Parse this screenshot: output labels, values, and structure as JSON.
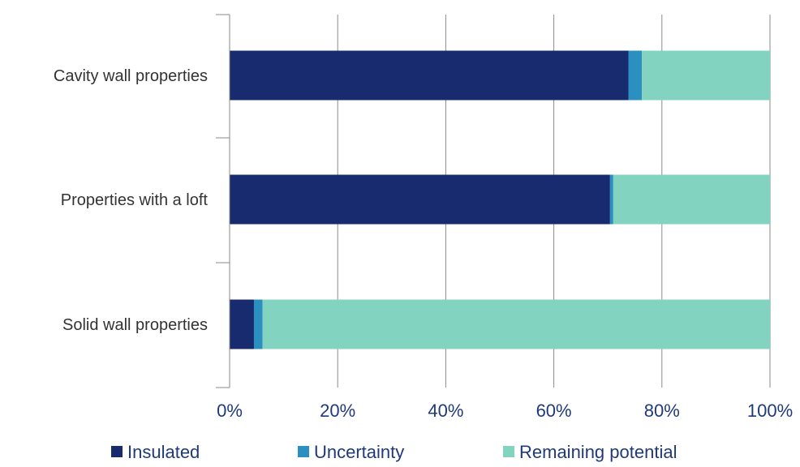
{
  "chart_data": {
    "type": "bar",
    "orientation": "horizontal",
    "stacked": true,
    "categories": [
      "Cavity wall properties",
      "Properties with a loft",
      "Solid wall properties"
    ],
    "series": [
      {
        "name": "Insulated",
        "values": [
          73.8,
          70.4,
          4.5
        ],
        "color": "#182b6e"
      },
      {
        "name": "Uncertainty",
        "values": [
          2.5,
          0.6,
          1.6
        ],
        "color": "#2b8fc0"
      },
      {
        "name": "Remaining potential",
        "values": [
          23.7,
          29.0,
          93.9
        ],
        "color": "#82d3bf"
      }
    ],
    "xlim": [
      0,
      100
    ],
    "xticks": [
      "0%",
      "20%",
      "40%",
      "60%",
      "80%",
      "100%"
    ],
    "grid": true,
    "legend_position": "bottom",
    "title": "",
    "xlabel": "",
    "ylabel": ""
  }
}
